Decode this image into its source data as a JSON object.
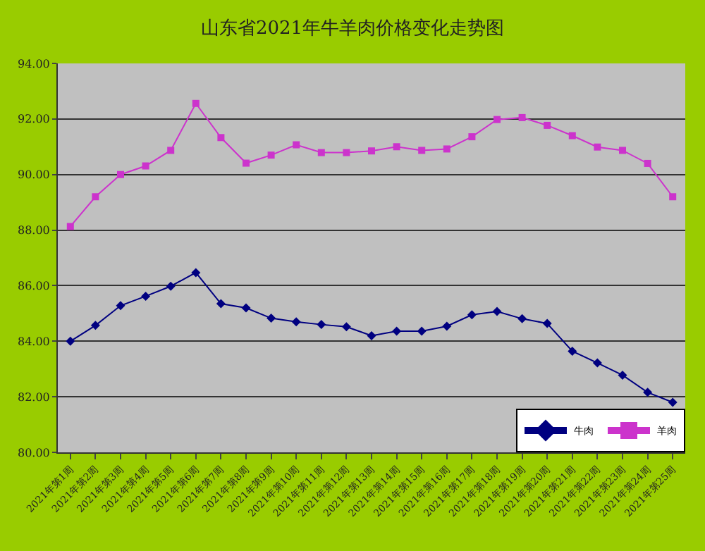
{
  "chart_data": {
    "type": "line",
    "title": "山东省2021年牛羊肉价格变化走势图",
    "categories": [
      "2021年第1周",
      "2021年第2周",
      "2021年第3周",
      "2021年第4周",
      "2021年第5周",
      "2021年第6周",
      "2021年第7周",
      "2021年第8周",
      "2021年第9周",
      "2021年第10周",
      "2021年第11周",
      "2021年第12周",
      "2021年第13周",
      "2021年第14周",
      "2021年第15周",
      "2021年第16周",
      "2021年第17周",
      "2021年第18周",
      "2021年第19周",
      "2021年第20周",
      "2021年第21周",
      "2021年第22周",
      "2021年第23周",
      "2021年第24周",
      "2021年第25周"
    ],
    "series": [
      {
        "name": "牛肉",
        "color": "#000080",
        "marker": "diamond",
        "values": [
          84.0,
          84.57,
          85.28,
          85.62,
          85.98,
          86.47,
          85.35,
          85.2,
          84.83,
          84.7,
          84.6,
          84.52,
          84.2,
          84.36,
          84.36,
          84.54,
          84.95,
          85.07,
          84.81,
          84.64,
          83.64,
          83.22,
          82.78,
          82.16,
          81.8
        ]
      },
      {
        "name": "羊肉",
        "color": "#cc33cc",
        "marker": "square",
        "values": [
          88.13,
          89.2,
          90.0,
          90.31,
          90.87,
          92.56,
          91.33,
          90.41,
          90.7,
          91.07,
          90.79,
          90.79,
          90.85,
          91.0,
          90.87,
          90.92,
          91.36,
          91.98,
          92.05,
          91.77,
          91.4,
          90.99,
          90.87,
          90.4,
          89.2
        ]
      }
    ],
    "ylim": [
      80,
      94
    ],
    "yticks": [
      {
        "value": 80,
        "label": "80.00"
      },
      {
        "value": 82,
        "label": "82.00"
      },
      {
        "value": 84,
        "label": "84.00"
      },
      {
        "value": 86,
        "label": "86.00"
      },
      {
        "value": 88,
        "label": "88.00"
      },
      {
        "value": 90,
        "label": "90.00"
      },
      {
        "value": 92,
        "label": "92.00"
      },
      {
        "value": 94,
        "label": "94.00"
      }
    ],
    "grid": "y",
    "legend": "bottom right",
    "line_style": "solid"
  }
}
